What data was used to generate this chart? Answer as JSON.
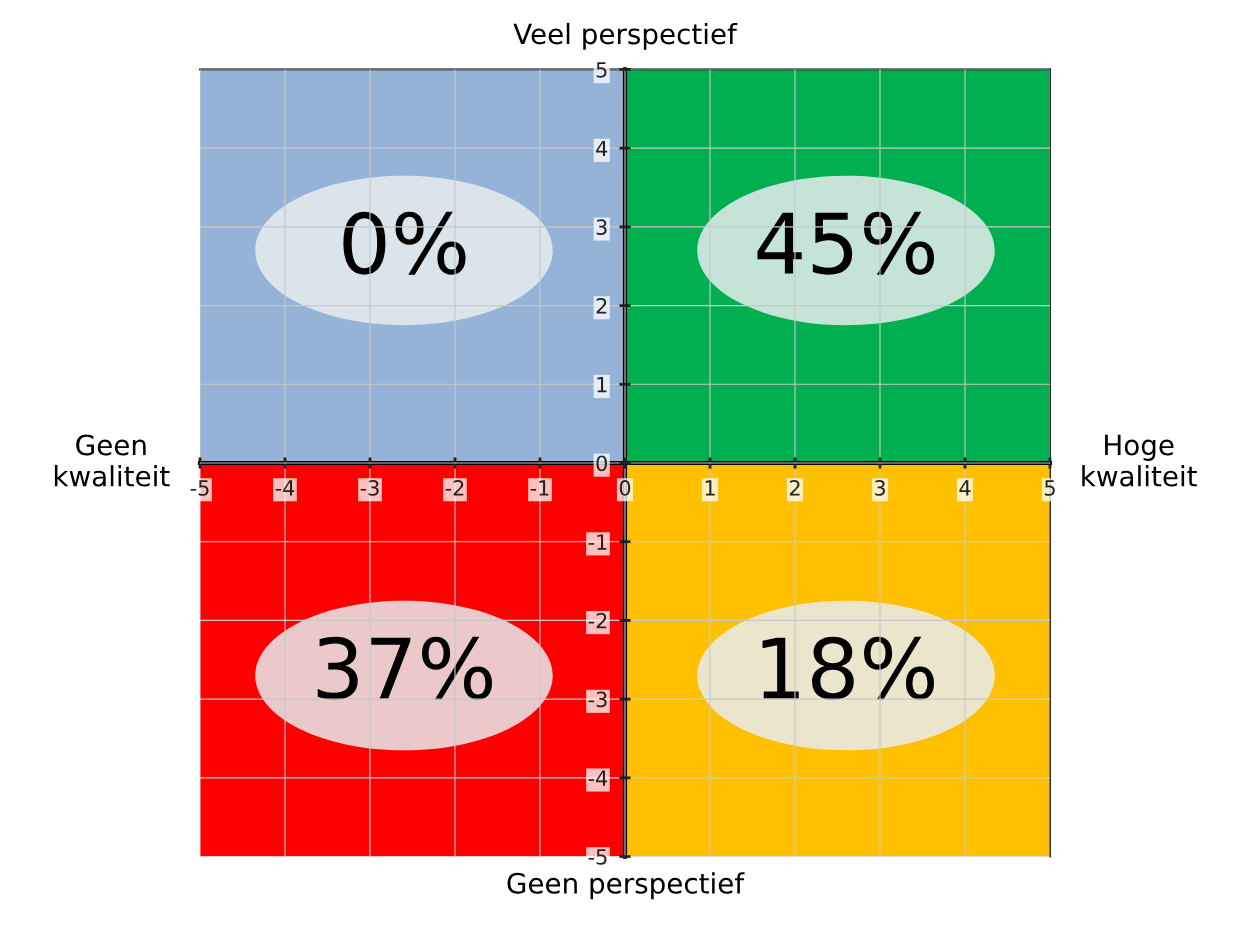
{
  "chart_data": {
    "type": "scatter",
    "xlim": [
      -5,
      5
    ],
    "ylim": [
      -5,
      5
    ],
    "xticks": [
      -5,
      -4,
      -3,
      -2,
      -1,
      0,
      1,
      2,
      3,
      4,
      5
    ],
    "yticks": [
      -5,
      -4,
      -3,
      -2,
      -1,
      0,
      1,
      2,
      3,
      4,
      5
    ],
    "grid": true,
    "annotations": [
      "Veel perspectief",
      "Geen perspectief",
      "Geen kwaliteit",
      "Hoge kwaliteit",
      "0%",
      "45%",
      "37%",
      "18%"
    ]
  }
}
